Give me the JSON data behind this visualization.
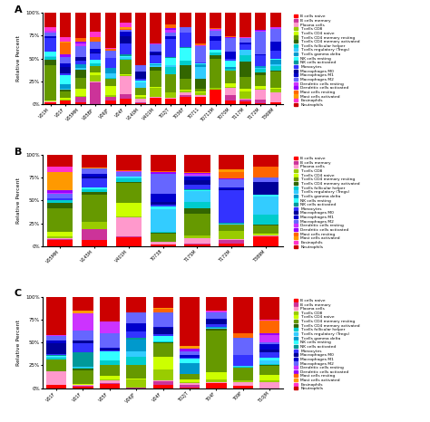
{
  "cell_types": [
    "B cells naive",
    "B cells memory",
    "Plasma cells",
    "T cells CD8",
    "T cells CD4 naive",
    "T cells CD4 memory resting",
    "T cells CD4 memory activated",
    "T cells follicular helper",
    "T cells regulatory (Tregs)",
    "T cells gamma delta",
    "NK cells resting",
    "NK cells activated",
    "Monocytes",
    "Macrophages M0",
    "Macrophages M1",
    "Macrophages M2",
    "Dendritic cells resting",
    "Dendritic cells activated",
    "Mast cells resting",
    "Mast cells activated",
    "Eosinophils",
    "Neutrophils"
  ],
  "cell_colors": [
    "#FF0000",
    "#CC3399",
    "#FF99CC",
    "#99CC00",
    "#CCFF00",
    "#669900",
    "#336600",
    "#00CCCC",
    "#33CCFF",
    "#0099CC",
    "#33FFFF",
    "#009999",
    "#3333FF",
    "#000099",
    "#0000CC",
    "#6666FF",
    "#CC33FF",
    "#9900FF",
    "#FF6600",
    "#FF9900",
    "#FF33CC",
    "#CC0000"
  ],
  "panel_A_samples": [
    "V01M",
    "V01F",
    "V05MM",
    "V05BF",
    "V06JF",
    "V04F",
    "V140M",
    "V401M",
    "T02JT",
    "T036F",
    "T0711",
    "T0713M",
    "T070M",
    "T117M",
    "T172M",
    "T369M"
  ],
  "panel_B_samples": [
    "V05MM",
    "V145M",
    "V401M",
    "T0738",
    "T17SM",
    "T172M",
    "T389M"
  ],
  "panel_C_samples": [
    "V01F",
    "V01F",
    "V05F",
    "V06JF",
    "V04F",
    "T02JT",
    "T04F",
    "T09F",
    "T10JM"
  ],
  "seed_A": 1,
  "seed_B": 2,
  "seed_C": 3
}
